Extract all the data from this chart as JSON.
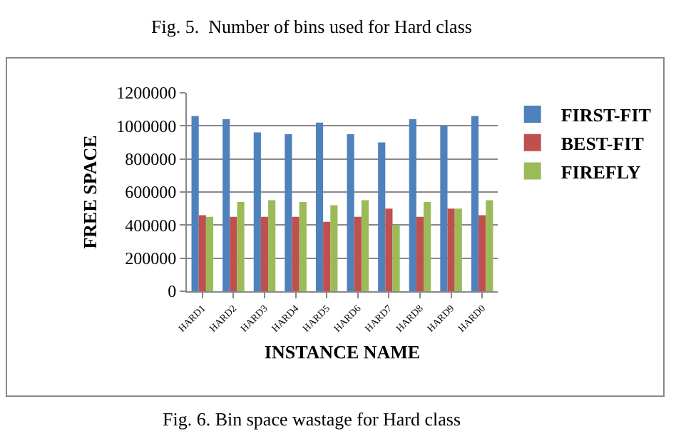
{
  "chart_data": {
    "type": "bar",
    "xlabel": "INSTANCE NAME",
    "ylabel": "FREE SPACE",
    "categories": [
      "HARD1",
      "HARD2",
      "HARD3",
      "HARD4",
      "HARD5",
      "HARD6",
      "HARD7",
      "HARD8",
      "HARD9",
      "HARD0"
    ],
    "series": [
      {
        "name": "FIRST-FIT",
        "color": "#4f81bd",
        "values": [
          1060000,
          1040000,
          960000,
          950000,
          1020000,
          950000,
          900000,
          1040000,
          1000000,
          1060000
        ]
      },
      {
        "name": "BEST-FIT",
        "color": "#c0504d",
        "values": [
          460000,
          450000,
          450000,
          450000,
          420000,
          450000,
          500000,
          450000,
          500000,
          460000
        ]
      },
      {
        "name": "FIREFLY",
        "color": "#9bbb59",
        "values": [
          450000,
          540000,
          550000,
          540000,
          520000,
          550000,
          400000,
          540000,
          500000,
          550000
        ]
      }
    ],
    "ylim": [
      0,
      1200000
    ],
    "yticks": [
      0,
      200000,
      400000,
      600000,
      800000,
      1000000,
      1200000
    ],
    "grid": "y",
    "legend": "right",
    "annotations": [
      "Fig. 5.  Number of bins used for Hard class",
      "Fig. 6. Bin space wastage for Hard class"
    ]
  }
}
